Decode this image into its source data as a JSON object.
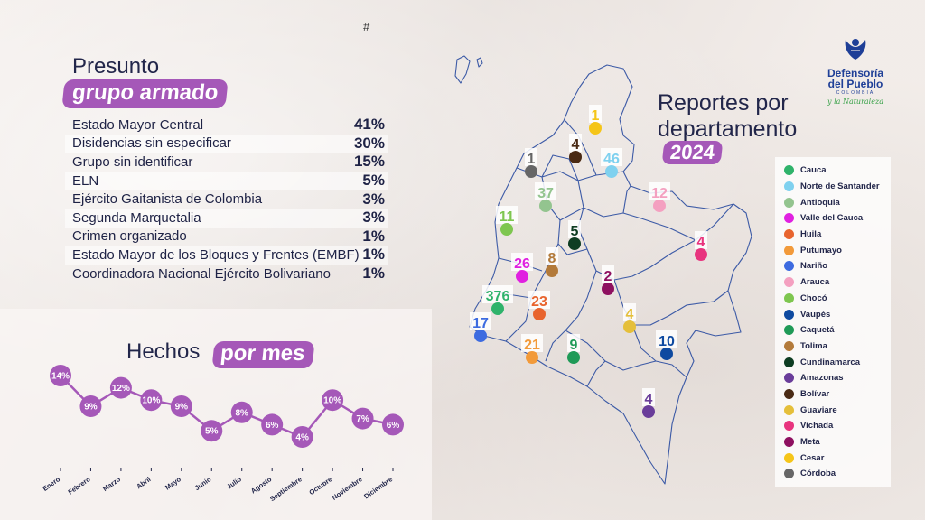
{
  "hash_mark": "#",
  "groups": {
    "title_line1": "Presunto",
    "title_line2": "grupo armado",
    "items": [
      {
        "name": "Estado Mayor Central",
        "pct": "41%"
      },
      {
        "name": "Disidencias sin especificar",
        "pct": "30%"
      },
      {
        "name": "Grupo sin identificar",
        "pct": "15%"
      },
      {
        "name": "ELN",
        "pct": "5%"
      },
      {
        "name": "Ejército Gaitanista de Colombia",
        "pct": "3%"
      },
      {
        "name": "Segunda Marquetalia",
        "pct": "3%"
      },
      {
        "name": "Crimen organizado",
        "pct": "1%"
      },
      {
        "name": "Estado Mayor de los Bloques y Frentes (EMBF)",
        "pct": "1%"
      },
      {
        "name": "Coordinadora Nacional Ejército Bolivariano",
        "pct": "1%"
      }
    ]
  },
  "monthly": {
    "title_part1": "Hechos",
    "title_part2": "por mes"
  },
  "reports": {
    "title_line1": "Reportes por",
    "title_line2": "departamento",
    "year": "2024"
  },
  "logo": {
    "line1": "Defensoría",
    "line2": "del Pueblo",
    "country": "COLOMBIA",
    "tagline": "y la Naturaleza"
  },
  "chart_data": [
    {
      "type": "line",
      "title": "Hechos por mes",
      "categories": [
        "Enero",
        "Febrero",
        "Marzo",
        "Abril",
        "Mayo",
        "Junio",
        "Julio",
        "Agosto",
        "Septiembre",
        "Octubre",
        "Noviembre",
        "Diciembre"
      ],
      "values": [
        14,
        9,
        12,
        10,
        9,
        5,
        8,
        6,
        4,
        10,
        7,
        6
      ],
      "value_labels": [
        "14%",
        "9%",
        "12%",
        "10%",
        "9%",
        "5%",
        "8%",
        "6%",
        "4%",
        "10%",
        "7%",
        "6%"
      ],
      "unit": "%",
      "color": "#a558b8"
    },
    {
      "type": "map",
      "title": "Reportes por departamento 2024",
      "legend_position": "right",
      "departments": [
        {
          "name": "Cauca",
          "value": 376,
          "color": "#2fb36b"
        },
        {
          "name": "Norte de Santander",
          "value": 46,
          "color": "#7fd1ef"
        },
        {
          "name": "Antioquia",
          "value": 37,
          "color": "#93c48f"
        },
        {
          "name": "Valle del Cauca",
          "value": 26,
          "color": "#e020e0"
        },
        {
          "name": "Huila",
          "value": 23,
          "color": "#e8642e"
        },
        {
          "name": "Putumayo",
          "value": 21,
          "color": "#f29a3a"
        },
        {
          "name": "Nariño",
          "value": 17,
          "color": "#3d6be0"
        },
        {
          "name": "Arauca",
          "value": 12,
          "color": "#f4a0c0"
        },
        {
          "name": "Chocó",
          "value": 11,
          "color": "#7ec64f"
        },
        {
          "name": "Vaupés",
          "value": 10,
          "color": "#0f4aa0"
        },
        {
          "name": "Caquetá",
          "value": 9,
          "color": "#1f9a57"
        },
        {
          "name": "Tolima",
          "value": 8,
          "color": "#b37a3a"
        },
        {
          "name": "Cundinamarca",
          "value": 5,
          "color": "#0e3d22"
        },
        {
          "name": "Amazonas",
          "value": 4,
          "color": "#6a3d9a"
        },
        {
          "name": "Bolívar",
          "value": 4,
          "color": "#4a2a14"
        },
        {
          "name": "Guaviare",
          "value": 4,
          "color": "#e5bf3a"
        },
        {
          "name": "Vichada",
          "value": 4,
          "color": "#e8347e"
        },
        {
          "name": "Meta",
          "value": 2,
          "color": "#8e1060"
        },
        {
          "name": "Cesar",
          "value": 1,
          "color": "#f5c518"
        },
        {
          "name": "Córdoba",
          "value": 1,
          "color": "#666666"
        }
      ]
    }
  ]
}
